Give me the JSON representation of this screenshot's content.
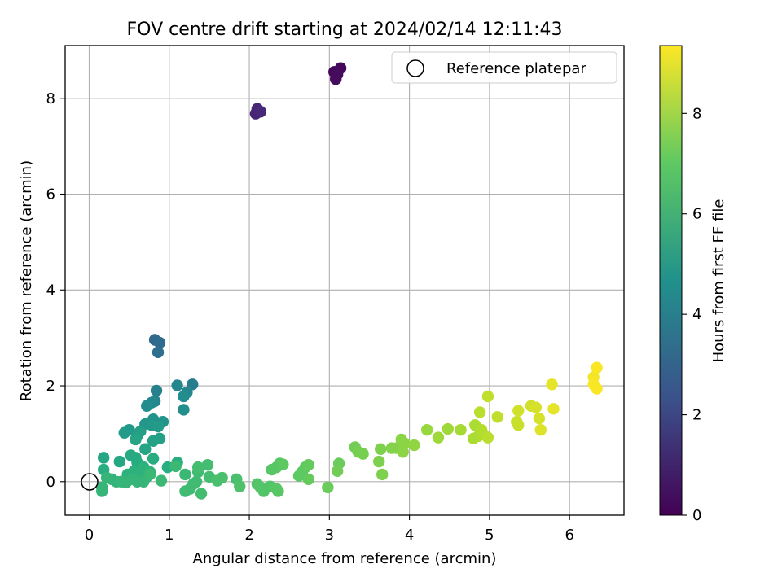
{
  "chart_data": {
    "type": "scatter",
    "title": "FOV centre drift starting at 2024/02/14 12:11:43",
    "xlabel": "Angular distance from reference (arcmin)",
    "ylabel": "Rotation from reference (arcmin)",
    "xlim": [
      -0.3,
      6.68
    ],
    "ylim": [
      -0.7,
      9.1
    ],
    "xticks": [
      0,
      1,
      2,
      3,
      4,
      5,
      6
    ],
    "yticks": [
      0,
      2,
      4,
      6,
      8
    ],
    "grid": true,
    "legend": {
      "placement": "top-right",
      "entries": [
        "Reference platepar"
      ]
    },
    "reference": {
      "name": "Reference platepar",
      "x": 0,
      "y": 0
    },
    "colorbar": {
      "label": "Hours from first FF file",
      "colormap": "viridis",
      "range": [
        0,
        9.35
      ],
      "ticks": [
        0,
        2,
        4,
        6,
        8
      ]
    },
    "series": [
      {
        "points": [
          [
            3.06,
            8.55,
            0.2
          ],
          [
            3.14,
            8.63,
            0.25
          ],
          [
            3.08,
            8.4,
            0.3
          ],
          [
            3.1,
            8.5,
            0.35
          ],
          [
            2.08,
            7.68,
            1.1
          ],
          [
            2.1,
            7.78,
            1.15
          ],
          [
            2.14,
            7.72,
            1.2
          ],
          [
            0.82,
            2.96,
            3.2
          ],
          [
            0.88,
            2.9,
            3.3
          ],
          [
            0.86,
            2.7,
            3.4
          ],
          [
            1.29,
            2.03,
            3.9
          ],
          [
            0.84,
            1.9,
            4.1
          ],
          [
            0.82,
            1.68,
            4.2
          ],
          [
            1.1,
            2.01,
            4.3
          ],
          [
            1.22,
            1.86,
            4.3
          ],
          [
            0.78,
            1.65,
            4.4
          ],
          [
            0.72,
            1.58,
            4.5
          ],
          [
            1.18,
            1.78,
            4.5
          ],
          [
            1.18,
            1.5,
            4.6
          ],
          [
            0.8,
            1.3,
            4.7
          ],
          [
            0.92,
            1.25,
            4.8
          ],
          [
            0.7,
            1.2,
            4.9
          ],
          [
            0.5,
            1.08,
            5.0
          ],
          [
            0.78,
            1.18,
            5.0
          ],
          [
            0.86,
            1.15,
            5.1
          ],
          [
            0.44,
            1.02,
            5.1
          ],
          [
            0.64,
            1.05,
            5.2
          ],
          [
            0.6,
            0.95,
            5.3
          ],
          [
            0.88,
            0.9,
            5.3
          ],
          [
            0.8,
            0.85,
            5.4
          ],
          [
            0.58,
            0.88,
            5.5
          ],
          [
            0.7,
            0.68,
            5.5
          ],
          [
            0.38,
            0.42,
            5.6
          ],
          [
            0.18,
            0.5,
            5.6
          ],
          [
            0.52,
            0.55,
            5.7
          ],
          [
            0.58,
            0.5,
            5.7
          ],
          [
            0.6,
            0.4,
            5.8
          ],
          [
            0.8,
            0.48,
            5.8
          ],
          [
            0.98,
            0.3,
            5.9
          ],
          [
            1.1,
            0.4,
            5.9
          ],
          [
            0.18,
            0.25,
            5.9
          ],
          [
            0.48,
            0.15,
            6.0
          ],
          [
            0.56,
            0.22,
            6.0
          ],
          [
            0.62,
            0.2,
            6.0
          ],
          [
            0.68,
            0.3,
            6.0
          ],
          [
            0.72,
            0.1,
            6.1
          ],
          [
            0.76,
            0.2,
            6.1
          ],
          [
            0.28,
            0.05,
            6.1
          ],
          [
            0.34,
            0.0,
            6.1
          ],
          [
            0.4,
            0.0,
            6.2
          ],
          [
            0.46,
            -0.02,
            6.2
          ],
          [
            0.54,
            0.05,
            6.2
          ],
          [
            0.6,
            0.0,
            6.2
          ],
          [
            0.68,
            0.0,
            6.2
          ],
          [
            0.76,
            0.15,
            6.3
          ],
          [
            0.9,
            0.02,
            6.3
          ],
          [
            0.16,
            -0.12,
            6.2
          ],
          [
            0.16,
            -0.2,
            6.2
          ],
          [
            0.22,
            0.08,
            6.2
          ],
          [
            1.08,
            0.32,
            6.3
          ],
          [
            1.2,
            0.15,
            6.3
          ],
          [
            1.2,
            -0.2,
            6.4
          ],
          [
            1.26,
            -0.15,
            6.4
          ],
          [
            1.3,
            -0.05,
            6.4
          ],
          [
            1.34,
            0.0,
            6.4
          ],
          [
            1.36,
            0.2,
            6.4
          ],
          [
            1.36,
            0.3,
            6.5
          ],
          [
            1.4,
            -0.25,
            6.5
          ],
          [
            1.48,
            0.35,
            6.5
          ],
          [
            1.5,
            0.1,
            6.5
          ],
          [
            1.6,
            0.02,
            6.6
          ],
          [
            1.66,
            0.08,
            6.6
          ],
          [
            1.84,
            0.05,
            6.6
          ],
          [
            1.88,
            -0.1,
            6.7
          ],
          [
            2.1,
            -0.05,
            6.8
          ],
          [
            2.14,
            -0.12,
            6.8
          ],
          [
            2.18,
            -0.2,
            6.8
          ],
          [
            2.26,
            -0.1,
            6.8
          ],
          [
            2.28,
            0.25,
            6.9
          ],
          [
            2.34,
            0.3,
            6.9
          ],
          [
            2.34,
            -0.15,
            6.9
          ],
          [
            2.36,
            -0.2,
            6.9
          ],
          [
            2.38,
            0.38,
            6.9
          ],
          [
            2.42,
            0.36,
            7.0
          ],
          [
            2.62,
            0.12,
            7.0
          ],
          [
            2.66,
            0.2,
            7.0
          ],
          [
            2.7,
            0.3,
            7.0
          ],
          [
            2.74,
            0.35,
            7.1
          ],
          [
            2.74,
            0.05,
            7.1
          ],
          [
            2.98,
            -0.12,
            7.2
          ],
          [
            3.12,
            0.38,
            7.2
          ],
          [
            3.1,
            0.22,
            7.3
          ],
          [
            3.32,
            0.72,
            7.3
          ],
          [
            3.36,
            0.62,
            7.4
          ],
          [
            3.42,
            0.58,
            7.4
          ],
          [
            3.62,
            0.42,
            7.5
          ],
          [
            3.64,
            0.68,
            7.5
          ],
          [
            3.66,
            0.15,
            7.5
          ],
          [
            3.78,
            0.7,
            7.6
          ],
          [
            3.84,
            0.7,
            7.6
          ],
          [
            3.9,
            0.88,
            7.7
          ],
          [
            3.92,
            0.62,
            7.7
          ],
          [
            3.94,
            0.8,
            7.7
          ],
          [
            4.06,
            0.76,
            7.8
          ],
          [
            4.22,
            1.08,
            7.9
          ],
          [
            4.36,
            0.92,
            8.0
          ],
          [
            4.48,
            1.1,
            8.0
          ],
          [
            4.64,
            1.08,
            8.1
          ],
          [
            4.8,
            0.9,
            8.2
          ],
          [
            4.82,
            1.18,
            8.2
          ],
          [
            4.86,
            0.95,
            8.2
          ],
          [
            4.9,
            1.08,
            8.3
          ],
          [
            4.92,
            1.0,
            8.3
          ],
          [
            4.98,
            0.92,
            8.4
          ],
          [
            4.88,
            1.45,
            8.4
          ],
          [
            4.98,
            1.78,
            8.5
          ],
          [
            5.1,
            1.35,
            8.5
          ],
          [
            5.34,
            1.25,
            8.6
          ],
          [
            5.36,
            1.18,
            8.6
          ],
          [
            5.36,
            1.48,
            8.7
          ],
          [
            5.52,
            1.58,
            8.7
          ],
          [
            5.58,
            1.55,
            8.8
          ],
          [
            5.62,
            1.32,
            8.8
          ],
          [
            5.64,
            1.08,
            8.9
          ],
          [
            5.78,
            2.03,
            9.0
          ],
          [
            5.8,
            1.52,
            9.0
          ],
          [
            6.3,
            2.18,
            9.2
          ],
          [
            6.3,
            2.03,
            9.3
          ],
          [
            6.34,
            2.38,
            9.3
          ],
          [
            6.34,
            1.94,
            9.3
          ]
        ]
      }
    ]
  }
}
